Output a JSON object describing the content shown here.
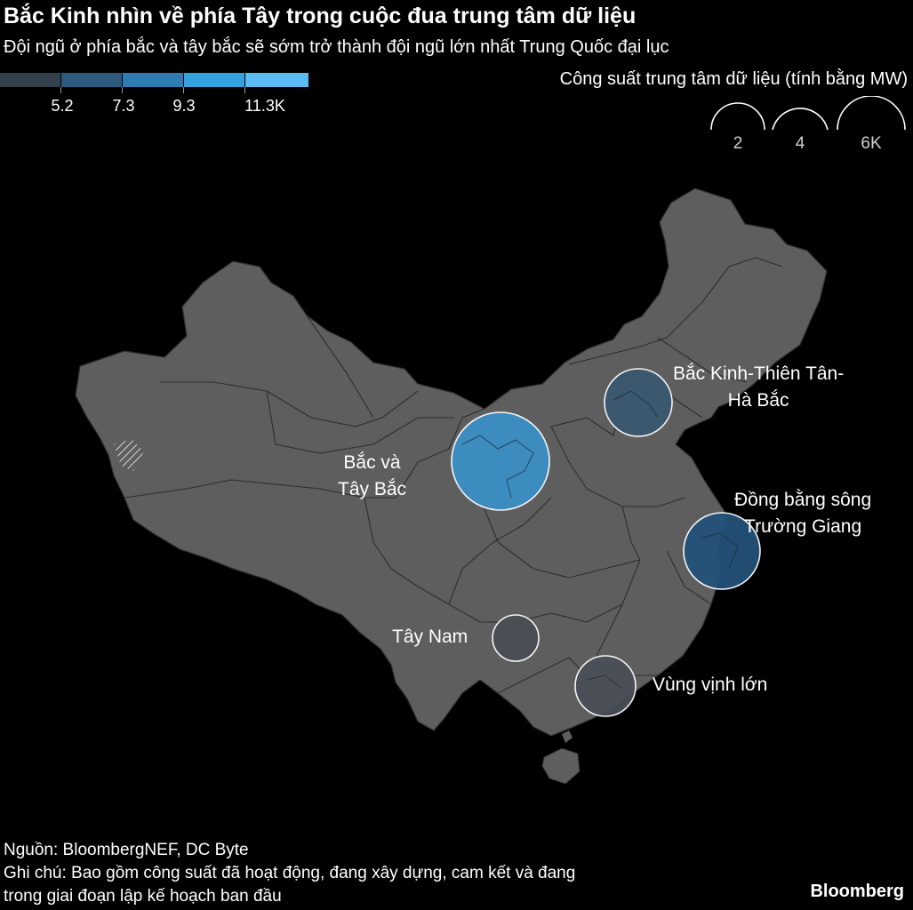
{
  "title": "Bắc Kinh nhìn về phía Tây trong cuộc đua trung tâm dữ liệu",
  "subtitle": "Đội ngũ ở phía bắc và tây bắc sẽ sớm trở thành đội ngũ lớn nhất Trung Quốc đại lục",
  "color_legend": {
    "labels": [
      "5.2",
      "7.3",
      "9.3",
      "11.3K"
    ],
    "colors": [
      "#33414d",
      "#2d5a7c",
      "#2f7cb2",
      "#34a2de",
      "#5bbcf4"
    ]
  },
  "size_legend": {
    "title": "Công suất trung tâm dữ liệu (tính bằng MW)",
    "labels": [
      "2",
      "4",
      "6K"
    ]
  },
  "map": {
    "land_color": "#5e5e5e",
    "border_color": "#2e2e2e"
  },
  "regions": [
    {
      "label_line1": "Bắc và",
      "label_line2": "Tây Bắc",
      "color": "#3b8fc6"
    },
    {
      "label_line1": "Bắc Kinh-Thiên Tân-",
      "label_line2": "Hà Bắc",
      "color": "#3a5870"
    },
    {
      "label_line1": "Đồng bằng sông",
      "label_line2": "Trường Giang",
      "color": "#24527a"
    },
    {
      "label_line1": "Tây Nam",
      "label_line2": "",
      "color": "#4b4f55"
    },
    {
      "label_line1": "Vùng vịnh lớn",
      "label_line2": "",
      "color": "#4a5058"
    }
  ],
  "footer": {
    "source": "Nguồn: BloombergNEF, DC Byte",
    "note_line1": "Ghi chú: Bao gồm công suất đã hoạt động, đang xây dựng, cam kết và đang",
    "note_line2": "trong giai đoạn lập kế hoạch ban đầu"
  },
  "brand": "Bloomberg"
}
